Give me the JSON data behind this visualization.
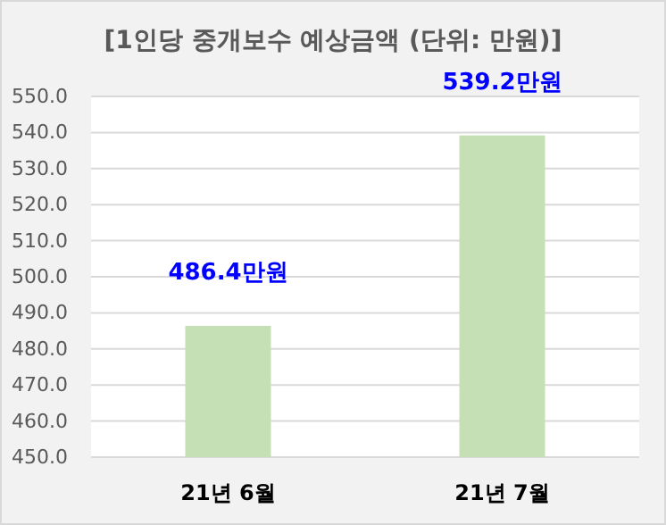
{
  "chart_data": {
    "type": "bar",
    "title": "[1인당 중개보수 예상금액 (단위: 만원)]",
    "categories": [
      "21년 6월",
      "21년 7월"
    ],
    "values": [
      486.4,
      539.2
    ],
    "value_labels": [
      "486.4만원",
      "539.2만원"
    ],
    "color": "#c5e0b4",
    "ylim": [
      450,
      550
    ],
    "yticks": [
      {
        "value": 450,
        "label": "450.0"
      },
      {
        "value": 460,
        "label": "460.0"
      },
      {
        "value": 470,
        "label": "470.0"
      },
      {
        "value": 480,
        "label": "480.0"
      },
      {
        "value": 490,
        "label": "490.0"
      },
      {
        "value": 500,
        "label": "500.0"
      },
      {
        "value": 510,
        "label": "510.0"
      },
      {
        "value": 520,
        "label": "520.0"
      },
      {
        "value": 530,
        "label": "530.0"
      },
      {
        "value": 540,
        "label": "540.0"
      },
      {
        "value": 550,
        "label": "550.0"
      }
    ],
    "grid": "y"
  }
}
